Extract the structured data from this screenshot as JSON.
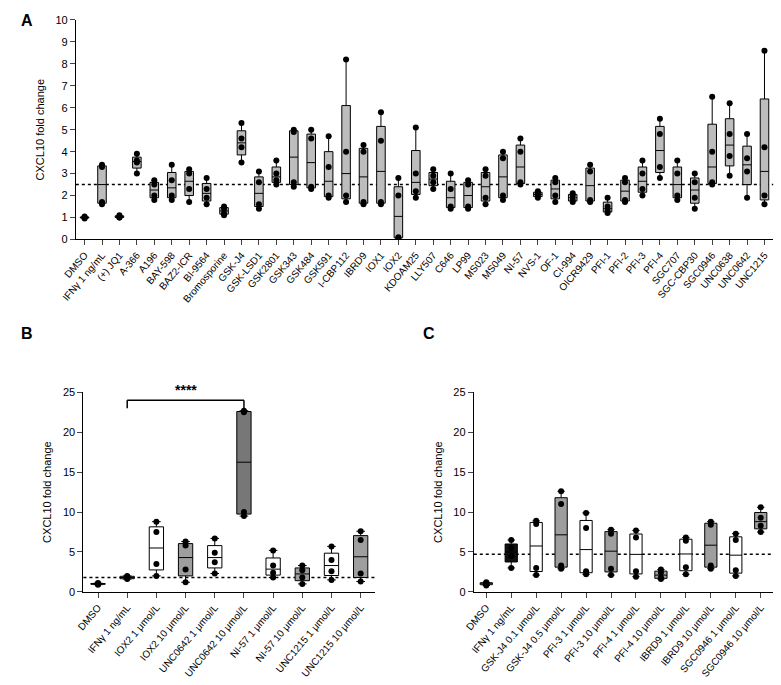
{
  "chart_data": [
    {
      "type": "box",
      "panel": "A",
      "ylabel": "CXCL10 fold change",
      "categories": [
        "DMSO",
        "IFNγ 1 ng/mL",
        "(+) JQ1",
        "A-366",
        "A196",
        "BAY-598",
        "BAZ2-ICR",
        "BI-9564",
        "Bromosporine",
        "GSK-J4",
        "GSK-LSD1",
        "GSK2801",
        "GSK343",
        "GSK484",
        "GSK591",
        "I-CBP112",
        "IBRD9",
        "IOX1",
        "IOX2",
        "KDOAM25",
        "LLY507",
        "C646",
        "LP99",
        "MS023",
        "MS049",
        "NI-57",
        "NVS-1",
        "OF-1",
        "CI-994",
        "OICR9429",
        "PFI-1",
        "PFI-2",
        "PFI-3",
        "PFI-4",
        "SGC707",
        "SGC-CBP30",
        "SGC0946",
        "UNC0638",
        "UNC0642",
        "UNC1215"
      ],
      "values": [
        [
          0.95,
          1.0,
          1.0,
          1.05
        ],
        [
          1.6,
          1.7,
          3.3,
          3.4
        ],
        [
          1.0,
          1.05,
          1.1,
          1.0
        ],
        [
          3.0,
          3.5,
          3.6,
          3.9
        ],
        [
          1.8,
          2.0,
          2.5,
          2.7
        ],
        [
          1.8,
          2.0,
          2.7,
          3.4
        ],
        [
          1.7,
          2.3,
          3.0,
          3.2
        ],
        [
          1.6,
          1.9,
          2.3,
          2.8
        ],
        [
          1.1,
          1.2,
          1.4,
          1.5
        ],
        [
          3.5,
          4.2,
          4.6,
          5.3
        ],
        [
          1.4,
          1.6,
          2.6,
          3.1
        ],
        [
          2.5,
          2.7,
          3.0,
          3.6
        ],
        [
          2.4,
          2.6,
          4.9,
          5.0
        ],
        [
          2.3,
          2.4,
          4.6,
          5.0
        ],
        [
          1.9,
          2.0,
          3.3,
          4.7
        ],
        [
          1.7,
          2.0,
          4.0,
          8.2
        ],
        [
          1.6,
          1.7,
          4.0,
          4.3
        ],
        [
          1.6,
          1.7,
          4.5,
          5.8
        ],
        [
          0.05,
          0.1,
          2.0,
          2.8
        ],
        [
          1.9,
          2.2,
          3.0,
          5.1
        ],
        [
          2.3,
          2.6,
          2.9,
          3.2
        ],
        [
          1.4,
          1.5,
          2.3,
          3.0
        ],
        [
          1.4,
          1.5,
          2.5,
          2.7
        ],
        [
          1.6,
          1.9,
          2.9,
          3.2
        ],
        [
          1.8,
          2.0,
          3.7,
          4.0
        ],
        [
          2.5,
          2.6,
          4.0,
          4.6
        ],
        [
          1.9,
          2.0,
          2.1,
          2.2
        ],
        [
          1.7,
          2.0,
          2.6,
          2.8
        ],
        [
          1.7,
          1.8,
          2.0,
          2.1
        ],
        [
          1.7,
          1.8,
          3.1,
          3.4
        ],
        [
          1.2,
          1.3,
          1.5,
          1.9
        ],
        [
          1.7,
          1.8,
          2.6,
          2.8
        ],
        [
          2.0,
          2.3,
          3.0,
          3.6
        ],
        [
          2.8,
          3.3,
          4.8,
          5.5
        ],
        [
          1.8,
          2.0,
          3.0,
          3.6
        ],
        [
          1.4,
          1.9,
          2.6,
          3.0
        ],
        [
          2.5,
          2.6,
          4.0,
          6.5
        ],
        [
          2.9,
          3.8,
          4.8,
          6.2
        ],
        [
          1.9,
          3.1,
          3.7,
          4.8
        ],
        [
          1.6,
          2.0,
          4.2,
          8.6
        ]
      ],
      "colors": [
        "#bdbdbd",
        "#bdbdbd",
        "#bdbdbd",
        "#bdbdbd",
        "#bdbdbd",
        "#bdbdbd",
        "#bdbdbd",
        "#bdbdbd",
        "#bdbdbd",
        "#bdbdbd",
        "#bdbdbd",
        "#bdbdbd",
        "#bdbdbd",
        "#bdbdbd",
        "#bdbdbd",
        "#bdbdbd",
        "#bdbdbd",
        "#bdbdbd",
        "#bdbdbd",
        "#bdbdbd",
        "#bdbdbd",
        "#bdbdbd",
        "#bdbdbd",
        "#bdbdbd",
        "#bdbdbd",
        "#bdbdbd",
        "#bdbdbd",
        "#bdbdbd",
        "#bdbdbd",
        "#bdbdbd",
        "#bdbdbd",
        "#bdbdbd",
        "#bdbdbd",
        "#bdbdbd",
        "#bdbdbd",
        "#bdbdbd",
        "#bdbdbd",
        "#bdbdbd",
        "#bdbdbd",
        "#bdbdbd"
      ],
      "ylim": [
        0,
        10
      ],
      "yticks": [
        0,
        1,
        2,
        3,
        4,
        5,
        6,
        7,
        8,
        9,
        10
      ],
      "baseline": 2.5,
      "line_style": "dotted"
    },
    {
      "type": "box",
      "panel": "B",
      "ylabel": "CXCL10 fold change",
      "categories": [
        "DMSO",
        "IFNγ 1 ng/mL",
        "IOX2 1 μmol/L",
        "IOX2 10 μmol/L",
        "UNC0642 1 μmol/L",
        "UNC0642 10 μmol/L",
        "NI-57 1 μmol/L",
        "NI-57 10 μmol/L",
        "UNC1215 1 μmol/L",
        "UNC1215 10 μmol/L"
      ],
      "values": [
        [
          0.9,
          1.0,
          1.0,
          1.1
        ],
        [
          1.6,
          1.7,
          1.9,
          2.0
        ],
        [
          2.0,
          3.5,
          7.5,
          8.8
        ],
        [
          1.2,
          2.8,
          5.8,
          6.3
        ],
        [
          2.3,
          3.7,
          4.9,
          6.7
        ],
        [
          9.5,
          10.0,
          22.5,
          22.7
        ],
        [
          1.8,
          2.4,
          3.3,
          5.2
        ],
        [
          1.0,
          1.8,
          2.7,
          3.3
        ],
        [
          1.5,
          2.6,
          4.0,
          5.7
        ],
        [
          1.3,
          2.3,
          6.5,
          7.6
        ]
      ],
      "colors": [
        "#ffffff",
        "#ffffff",
        "#ffffff",
        "#9e9e9e",
        "#ffffff",
        "#777777",
        "#ffffff",
        "#9e9e9e",
        "#ffffff",
        "#9e9e9e"
      ],
      "ylim": [
        0,
        25
      ],
      "yticks": [
        0,
        5,
        10,
        15,
        20,
        25
      ],
      "baseline": 1.8,
      "line_style": "dotted",
      "annotations": [
        {
          "text": "****",
          "from": "IFNγ 1 ng/mL",
          "to": "UNC0642 10 μmol/L",
          "y": 24
        }
      ]
    },
    {
      "type": "box",
      "panel": "C",
      "ylabel": "CXCL10 fold change",
      "categories": [
        "DMSO",
        "IFNγ 1 ng/mL",
        "GSK-J4 0.1 μmol/L",
        "GSK-J4 0.5 μmol/L",
        "PFI-3 1 μmol/L",
        "PFI-3 10 μmol/L",
        "PFI-4 1 μmol/L",
        "PFI-4 10 μmol/L",
        "IBRD9 1 μmol/L",
        "IBRD9 10 μmol/L",
        "SGC0946 1 μmol/L",
        "SGC0946 10 μmol/L"
      ],
      "values": [
        [
          0.8,
          1.0,
          1.1,
          1.2
        ],
        [
          3.0,
          4.5,
          5.5,
          6.5
        ],
        [
          2.1,
          3.0,
          8.5,
          8.9
        ],
        [
          2.9,
          3.3,
          11.0,
          12.6
        ],
        [
          2.2,
          2.6,
          8.0,
          9.9
        ],
        [
          2.1,
          2.9,
          7.3,
          7.8
        ],
        [
          1.9,
          2.6,
          6.8,
          7.7
        ],
        [
          1.6,
          1.8,
          2.4,
          2.8
        ],
        [
          2.2,
          3.1,
          6.4,
          6.8
        ],
        [
          2.9,
          3.3,
          8.4,
          8.8
        ],
        [
          2.0,
          2.7,
          6.5,
          7.3
        ],
        [
          7.5,
          8.3,
          9.3,
          10.6
        ]
      ],
      "colors": [
        "#ffffff",
        "#111111",
        "#ffffff",
        "#9e9e9e",
        "#ffffff",
        "#9e9e9e",
        "#ffffff",
        "#9e9e9e",
        "#ffffff",
        "#9e9e9e",
        "#ffffff",
        "#9e9e9e"
      ],
      "ylim": [
        0,
        25
      ],
      "yticks": [
        0,
        5,
        10,
        15,
        20,
        25
      ],
      "baseline": 4.7,
      "line_style": "dotted"
    }
  ]
}
